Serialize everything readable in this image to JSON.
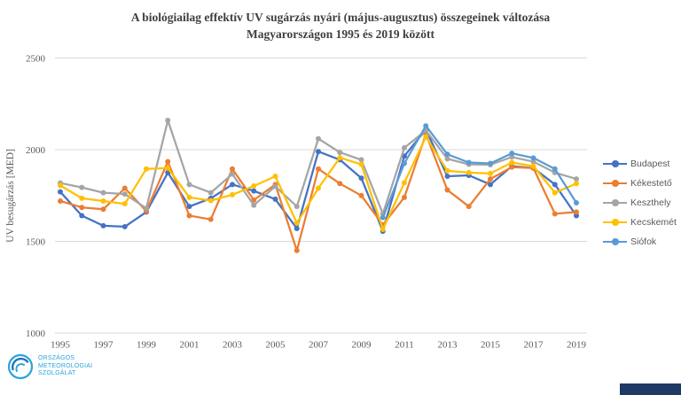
{
  "title": {
    "line1": "A biológiailag effektív UV sugárzás nyári (május-augusztus) összegeinek változása",
    "line2": "Magyarországon 1995 és 2019 között"
  },
  "y_axis": {
    "label": "UV besugárzás [MED]",
    "ticks": [
      2500,
      2000,
      1500,
      1000
    ],
    "min": 1000,
    "max": 2500
  },
  "x_axis": {
    "tick_labels": [
      "1995",
      "1997",
      "1999",
      "2001",
      "2003",
      "2005",
      "2007",
      "2009",
      "2011",
      "2013",
      "2015",
      "2017",
      "2019"
    ]
  },
  "legend": {
    "items": [
      {
        "label": "Budapest",
        "color": "#4472C4"
      },
      {
        "label": "Kékestető",
        "color": "#ED7D31"
      },
      {
        "label": "Keszthely",
        "color": "#A5A5A5"
      },
      {
        "label": "Kecskemét",
        "color": "#FFC000"
      },
      {
        "label": "Siófok",
        "color": "#5B9BD5"
      }
    ]
  },
  "logo": {
    "lines": [
      "ORSZÁGOS",
      "METEOROLÓGIAI",
      "SZOLGÁLAT"
    ],
    "color": "#2ba3dc"
  },
  "colors": {
    "gridline": "#d9d9d9",
    "tick_text": "#595959",
    "title_text": "#3f3f3f",
    "footer_bar": "#1f3864"
  },
  "chart_data": {
    "type": "line",
    "title": "A biológiailag effektív UV sugárzás nyári (május-augusztus) összegeinek változása Magyarországon 1995 és 2019 között",
    "ylabel": "UV besugárzás [MED]",
    "ylim": [
      1000,
      2500
    ],
    "grid": true,
    "legend_position": "right",
    "x": [
      1995,
      1996,
      1997,
      1998,
      1999,
      2000,
      2001,
      2002,
      2003,
      2004,
      2005,
      2006,
      2007,
      2008,
      2009,
      2010,
      2011,
      2012,
      2013,
      2014,
      2015,
      2016,
      2017,
      2018,
      2019
    ],
    "series": [
      {
        "name": "Budapest",
        "color": "#4472C4",
        "values": [
          1770,
          1640,
          1585,
          1580,
          1660,
          1875,
          1690,
          1735,
          1810,
          1775,
          1730,
          1570,
          1990,
          1945,
          1845,
          1555,
          1965,
          2110,
          1855,
          1860,
          1810,
          1910,
          1900,
          1810,
          1640
        ]
      },
      {
        "name": "Kékestető",
        "color": "#ED7D31",
        "values": [
          1720,
          1685,
          1675,
          1790,
          1665,
          1935,
          1640,
          1620,
          1895,
          1725,
          1810,
          1450,
          1895,
          1815,
          1750,
          1590,
          1740,
          2085,
          1780,
          1690,
          1840,
          1905,
          1900,
          1650,
          1660
        ]
      },
      {
        "name": "Keszthely",
        "color": "#A5A5A5",
        "values": [
          1818,
          1794,
          1765,
          1758,
          1680,
          2160,
          1810,
          1765,
          1867,
          1697,
          1800,
          1690,
          2060,
          1985,
          1945,
          1650,
          2010,
          2105,
          1950,
          1920,
          1918,
          1960,
          1935,
          1875,
          1840
        ]
      },
      {
        "name": "Kecskemét",
        "color": "#FFC000",
        "values": [
          1805,
          1735,
          1720,
          1705,
          1895,
          1900,
          1740,
          1722,
          1754,
          1802,
          1855,
          1600,
          1790,
          1956,
          1920,
          1565,
          1820,
          2070,
          1885,
          1875,
          1870,
          1930,
          1910,
          1765,
          1815
        ]
      },
      {
        "name": "Siófok",
        "color": "#5B9BD5",
        "values": [
          null,
          null,
          null,
          null,
          null,
          null,
          null,
          null,
          null,
          null,
          null,
          null,
          null,
          null,
          null,
          1630,
          1925,
          2130,
          1975,
          1930,
          1925,
          1980,
          1955,
          1895,
          1710
        ]
      }
    ]
  }
}
